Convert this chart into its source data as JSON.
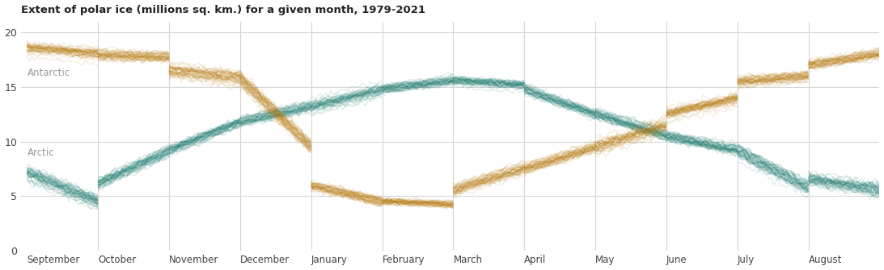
{
  "title": "Extent of polar ice (millions sq. km.) for a given month, 1979-2021",
  "months": [
    "September",
    "October",
    "November",
    "December",
    "January",
    "February",
    "March",
    "April",
    "May",
    "June",
    "July",
    "August"
  ],
  "arctic_color": "#1a7a6e",
  "antarctic_color": "#b87b10",
  "background_color": "#ffffff",
  "grid_color": "#d5d5d5",
  "label_color": "#999999",
  "ylim": [
    0,
    21
  ],
  "yticks": [
    0,
    5,
    10,
    15,
    20
  ],
  "n_years": 43,
  "n_days_per_month": 30,
  "line_width": 0.9,
  "figsize": [
    10.93,
    3.35
  ],
  "dpi": 100,
  "arctic_month_data": [
    [
      7.2,
      4.5,
      0.5
    ],
    [
      6.2,
      9.2,
      0.45
    ],
    [
      9.2,
      11.8,
      0.4
    ],
    [
      11.8,
      13.2,
      0.4
    ],
    [
      13.2,
      14.8,
      0.4
    ],
    [
      14.8,
      15.6,
      0.35
    ],
    [
      15.6,
      15.2,
      0.35
    ],
    [
      14.8,
      12.5,
      0.4
    ],
    [
      12.5,
      10.5,
      0.45
    ],
    [
      10.5,
      9.2,
      0.45
    ],
    [
      9.2,
      5.8,
      0.5
    ],
    [
      6.5,
      5.5,
      0.5
    ]
  ],
  "antarctic_month_data": [
    [
      18.5,
      18.0,
      0.4
    ],
    [
      18.0,
      17.8,
      0.4
    ],
    [
      16.5,
      15.8,
      0.5
    ],
    [
      15.8,
      9.5,
      0.6
    ],
    [
      6.0,
      4.5,
      0.4
    ],
    [
      4.5,
      4.2,
      0.3
    ],
    [
      5.5,
      7.5,
      0.4
    ],
    [
      7.5,
      9.5,
      0.4
    ],
    [
      9.5,
      11.5,
      0.5
    ],
    [
      12.5,
      14.0,
      0.5
    ],
    [
      15.5,
      16.0,
      0.4
    ],
    [
      17.0,
      18.0,
      0.4
    ]
  ]
}
